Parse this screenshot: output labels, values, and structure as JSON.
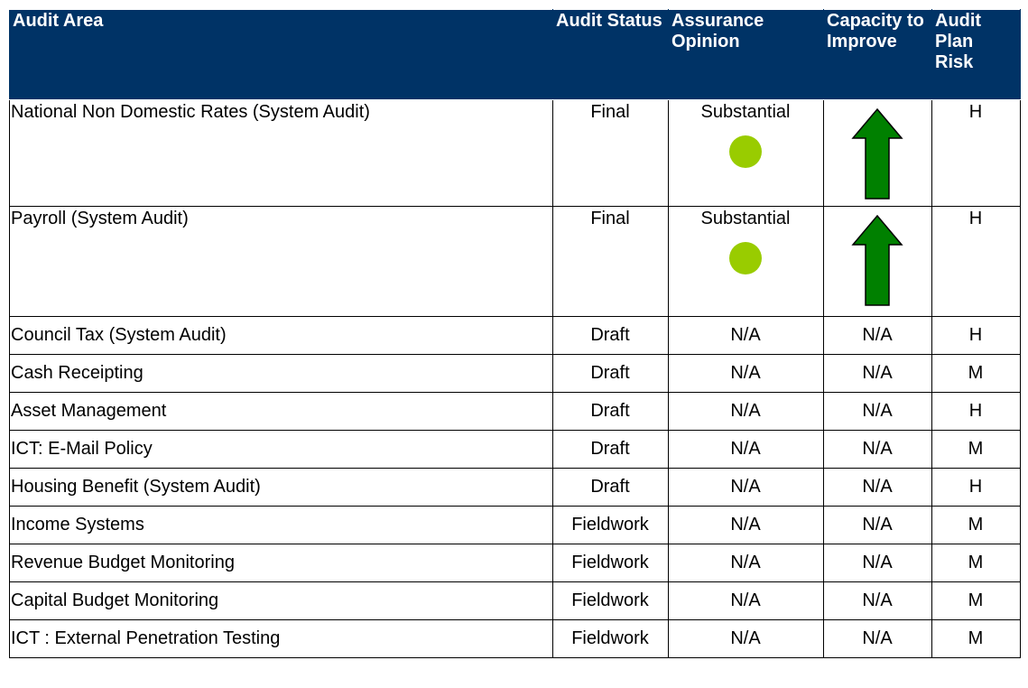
{
  "table": {
    "header": [
      "Audit Area",
      "Audit Status",
      "Assurance Opinion",
      "Capacity to Improve",
      "Audit Plan Risk"
    ],
    "rows": [
      [
        "National Non Domestic Rates (System Audit)",
        "Final",
        "Substantial",
        "",
        "H"
      ],
      [
        "Payroll (System Audit)",
        "Final",
        "Substantial",
        "",
        "H"
      ],
      [
        "Council Tax (System Audit)",
        "Draft",
        "N/A",
        "N/A",
        "H"
      ],
      [
        "Cash Receipting",
        "Draft",
        "N/A",
        "N/A",
        "M"
      ],
      [
        "Asset Management",
        "Draft",
        "N/A",
        "N/A",
        "H"
      ],
      [
        "ICT: E-Mail Policy",
        "Draft",
        "N/A",
        "N/A",
        "M"
      ],
      [
        "Housing Benefit (System Audit)",
        "Draft",
        "N/A",
        "N/A",
        "H"
      ],
      [
        "Income Systems",
        "Fieldwork",
        "N/A",
        "N/A",
        "M"
      ],
      [
        "Revenue Budget Monitoring",
        "Fieldwork",
        "N/A",
        "N/A",
        "M"
      ],
      [
        "Capital Budget Monitoring",
        "Fieldwork",
        "N/A",
        "N/A",
        "M"
      ],
      [
        "ICT : External Penetration Testing",
        "Fieldwork",
        "N/A",
        "N/A",
        "M"
      ]
    ]
  }
}
